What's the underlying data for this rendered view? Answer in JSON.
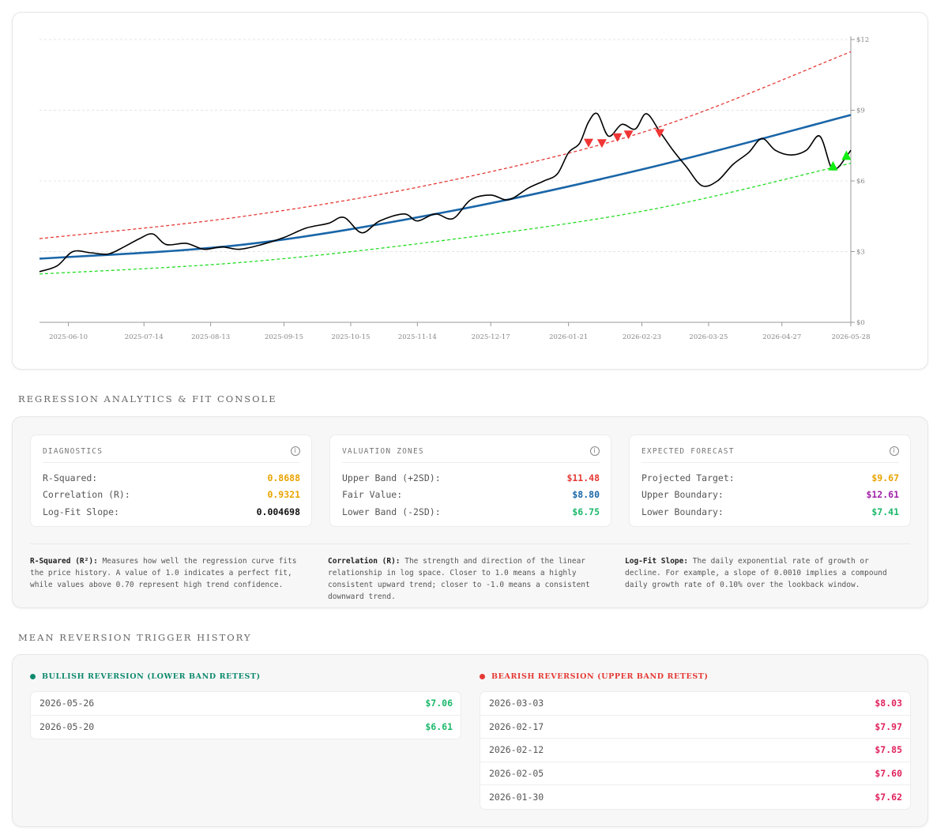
{
  "chart_data": {
    "type": "line",
    "x_ticks": [
      "2025-06-10",
      "2025-07-14",
      "2025-08-13",
      "2025-09-15",
      "2025-10-15",
      "2025-11-14",
      "2025-12-17",
      "2026-01-21",
      "2026-02-23",
      "2026-03-25",
      "2026-04-27",
      "2026-05-28"
    ],
    "y_ticks": [
      "$0",
      "$3",
      "$6",
      "$9",
      "$12"
    ],
    "ylim": [
      0,
      12
    ],
    "x_start": "2025-05-28",
    "x_end": "2026-05-28",
    "grid": true,
    "series": [
      {
        "role": "price",
        "color": "#000000",
        "points": [
          [
            "2025-05-28",
            2.15
          ],
          [
            "2025-06-05",
            2.4
          ],
          [
            "2025-06-12",
            3.0
          ],
          [
            "2025-06-20",
            2.95
          ],
          [
            "2025-06-28",
            2.9
          ],
          [
            "2025-07-05",
            3.2
          ],
          [
            "2025-07-12",
            3.55
          ],
          [
            "2025-07-18",
            3.75
          ],
          [
            "2025-07-24",
            3.3
          ],
          [
            "2025-08-02",
            3.35
          ],
          [
            "2025-08-10",
            3.1
          ],
          [
            "2025-08-18",
            3.2
          ],
          [
            "2025-08-26",
            3.1
          ],
          [
            "2025-09-05",
            3.3
          ],
          [
            "2025-09-15",
            3.6
          ],
          [
            "2025-09-25",
            4.0
          ],
          [
            "2025-10-05",
            4.2
          ],
          [
            "2025-10-12",
            4.45
          ],
          [
            "2025-10-20",
            3.8
          ],
          [
            "2025-10-28",
            4.3
          ],
          [
            "2025-11-08",
            4.6
          ],
          [
            "2025-11-14",
            4.3
          ],
          [
            "2025-11-22",
            4.6
          ],
          [
            "2025-11-30",
            4.4
          ],
          [
            "2025-12-08",
            5.2
          ],
          [
            "2025-12-17",
            5.4
          ],
          [
            "2025-12-25",
            5.2
          ],
          [
            "2026-01-03",
            5.7
          ],
          [
            "2026-01-10",
            6.0
          ],
          [
            "2026-01-16",
            6.3
          ],
          [
            "2026-01-21",
            7.2
          ],
          [
            "2026-01-26",
            7.6
          ],
          [
            "2026-01-30",
            8.5
          ],
          [
            "2026-02-03",
            8.85
          ],
          [
            "2026-02-08",
            7.9
          ],
          [
            "2026-02-14",
            8.4
          ],
          [
            "2026-02-20",
            8.2
          ],
          [
            "2026-02-25",
            8.85
          ],
          [
            "2026-03-03",
            8.1
          ],
          [
            "2026-03-09",
            7.3
          ],
          [
            "2026-03-15",
            6.6
          ],
          [
            "2026-03-22",
            5.8
          ],
          [
            "2026-03-29",
            6.0
          ],
          [
            "2026-04-05",
            6.7
          ],
          [
            "2026-04-12",
            7.2
          ],
          [
            "2026-04-18",
            7.8
          ],
          [
            "2026-04-24",
            7.3
          ],
          [
            "2026-05-01",
            7.1
          ],
          [
            "2026-05-08",
            7.3
          ],
          [
            "2026-05-14",
            7.9
          ],
          [
            "2026-05-19",
            6.6
          ],
          [
            "2026-05-22",
            6.55
          ],
          [
            "2026-05-25",
            6.9
          ],
          [
            "2026-05-28",
            7.3
          ]
        ]
      },
      {
        "role": "fair-value-regression",
        "color": "#1a66a8",
        "points": [
          [
            "2025-05-28",
            2.7
          ],
          [
            "2025-08-28",
            3.3
          ],
          [
            "2025-11-28",
            4.7
          ],
          [
            "2026-02-28",
            6.6
          ],
          [
            "2026-05-28",
            8.8
          ]
        ]
      },
      {
        "role": "upper-band",
        "color": "#e53935",
        "points": [
          [
            "2025-05-28",
            3.55
          ],
          [
            "2025-08-28",
            4.5
          ],
          [
            "2025-11-28",
            6.0
          ],
          [
            "2026-02-28",
            8.2
          ],
          [
            "2026-05-28",
            11.48
          ]
        ]
      },
      {
        "role": "lower-band",
        "color": "#22dd22",
        "points": [
          [
            "2025-05-28",
            2.05
          ],
          [
            "2025-08-28",
            2.55
          ],
          [
            "2025-11-28",
            3.5
          ],
          [
            "2026-02-28",
            4.8
          ],
          [
            "2026-05-28",
            6.75
          ]
        ]
      }
    ],
    "markers": {
      "bearish": [
        [
          "2026-01-30",
          7.62
        ],
        [
          "2026-02-05",
          7.6
        ],
        [
          "2026-02-12",
          7.85
        ],
        [
          "2026-02-17",
          7.97
        ],
        [
          "2026-03-03",
          8.03
        ]
      ],
      "bullish": [
        [
          "2026-05-20",
          6.61
        ],
        [
          "2026-05-26",
          7.06
        ]
      ]
    }
  },
  "analytics": {
    "section_title": "REGRESSION ANALYTICS & FIT CONSOLE",
    "diagnostics": {
      "title": "DIAGNOSTICS",
      "rows": [
        {
          "label": "R-Squared:",
          "value": "0.8688",
          "color": "#e8a400"
        },
        {
          "label": "Correlation (R):",
          "value": "0.9321",
          "color": "#e8a400"
        },
        {
          "label": "Log-Fit Slope:",
          "value": "0.004698",
          "color": "#111111"
        }
      ]
    },
    "valuation": {
      "title": "VALUATION ZONES",
      "rows": [
        {
          "label": "Upper Band (+2SD):",
          "value": "$11.48",
          "color": "#e53935"
        },
        {
          "label": "Fair Value:",
          "value": "$8.80",
          "color": "#1a66a8"
        },
        {
          "label": "Lower Band (-2SD):",
          "value": "$6.75",
          "color": "#1bb86a"
        }
      ]
    },
    "forecast": {
      "title": "EXPECTED FORECAST",
      "rows": [
        {
          "label": "Projected Target:",
          "value": "$9.67",
          "color": "#e8a400"
        },
        {
          "label": "Upper Boundary:",
          "value": "$12.61",
          "color": "#a020a8"
        },
        {
          "label": "Lower Boundary:",
          "value": "$7.41",
          "color": "#1bb86a"
        }
      ]
    },
    "explanations": [
      {
        "term": "R-Squared (R²):",
        "text": " Measures how well the regression curve fits the price history. A value of 1.0 indicates a perfect fit, while values above 0.70 represent high trend confidence."
      },
      {
        "term": "Correlation (R):",
        "text": " The strength and direction of the linear relationship in log space. Closer to 1.0 means a highly consistent upward trend; closer to -1.0 means a consistent downward trend."
      },
      {
        "term": "Log-Fit Slope:",
        "text": " The daily exponential rate of growth or decline. For example, a slope of 0.0010 implies a compound daily growth rate of 0.10% over the lookback window."
      }
    ]
  },
  "history": {
    "section_title": "MEAN REVERSION TRIGGER HISTORY",
    "bullish": {
      "title": "BULLISH REVERSION (LOWER BAND RETEST)",
      "color": "#0f8a6e",
      "price_color": "#1bb86a",
      "rows": [
        {
          "date": "2026-05-26",
          "price": "$7.06"
        },
        {
          "date": "2026-05-20",
          "price": "$6.61"
        }
      ]
    },
    "bearish": {
      "title": "BEARISH REVERSION (UPPER BAND RETEST)",
      "color": "#e53935",
      "price_color": "#e0245e",
      "rows": [
        {
          "date": "2026-03-03",
          "price": "$8.03"
        },
        {
          "date": "2026-02-17",
          "price": "$7.97"
        },
        {
          "date": "2026-02-12",
          "price": "$7.85"
        },
        {
          "date": "2026-02-05",
          "price": "$7.60"
        },
        {
          "date": "2026-01-30",
          "price": "$7.62"
        }
      ]
    }
  }
}
